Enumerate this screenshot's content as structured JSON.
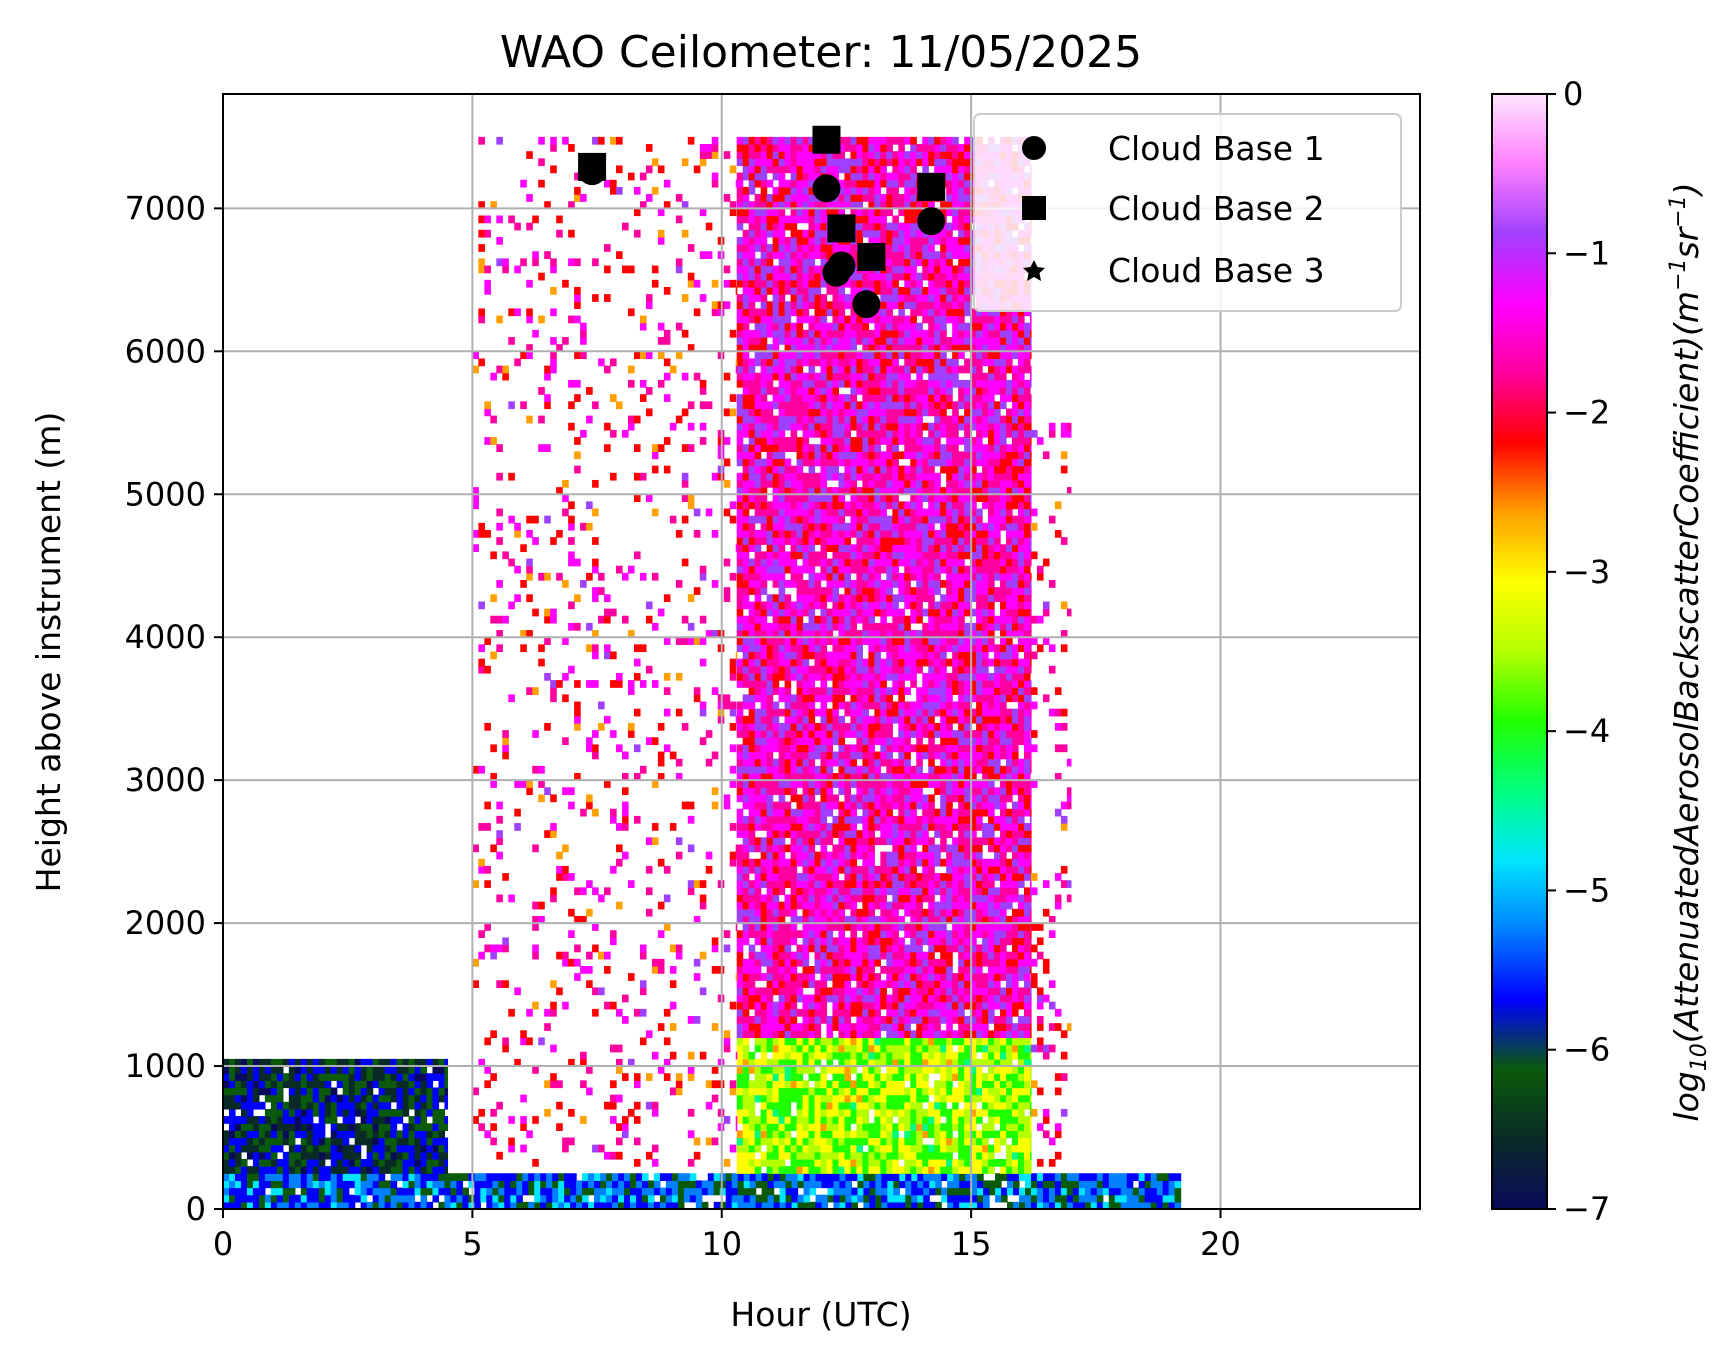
{
  "chart_data": {
    "type": "heatmap",
    "title": "WAO Ceilometer: 11/05/2025",
    "xlabel": "Hour (UTC)",
    "ylabel": "Height above instrument (m)",
    "xlim": [
      0,
      24
    ],
    "ylim": [
      0,
      7800
    ],
    "xticks": [
      "0",
      "5",
      "10",
      "15",
      "20"
    ],
    "yticks": [
      "0",
      "1000",
      "2000",
      "3000",
      "4000",
      "5000",
      "6000",
      "7000"
    ],
    "grid": true,
    "legend_position": "top-right",
    "colorbar": {
      "label": "log10(AttenuatedAerosolBackscatterCoefficient)(m^-1 sr^-1)",
      "label_main": "log",
      "label_sub": "10",
      "label_body": "(AttenuatedAerosolBackscatterCoefficient)(m",
      "label_exp1": "−1",
      "label_mid": "sr",
      "label_exp2": "−1",
      "label_end": ")",
      "range": [
        -7,
        0
      ],
      "ticks": [
        "0",
        "−1",
        "−2",
        "−3",
        "−4",
        "−5",
        "−6",
        "−7"
      ],
      "colormap": [
        "#0a0a5a",
        "#0a2a28",
        "#0a5a0a",
        "#0000ff",
        "#0080ff",
        "#00e5ff",
        "#00ff80",
        "#20ff00",
        "#b4ff00",
        "#ffff00",
        "#ffa000",
        "#ff0000",
        "#ff00a0",
        "#ff00ff",
        "#a040ff",
        "#ff80ff",
        "#ffe6ff"
      ]
    },
    "backscatter_regions": [
      {
        "x": [
          0,
          19.2
        ],
        "y": [
          0,
          250
        ],
        "level": -5.5
      },
      {
        "x": [
          0,
          4.5
        ],
        "y": [
          250,
          1050
        ],
        "level": -6.2
      },
      {
        "x": [
          10.3,
          16.2
        ],
        "y": [
          250,
          1200
        ],
        "level": -3.5
      },
      {
        "x": [
          10.3,
          16.2
        ],
        "y": [
          1200,
          7500
        ],
        "level": -1.5
      },
      {
        "x": [
          5,
          10.3
        ],
        "y": [
          300,
          7500
        ],
        "level": -1.8,
        "sparse": true
      },
      {
        "x": [
          16.2,
          17
        ],
        "y": [
          300,
          5500
        ],
        "level": -1.8,
        "sparse": true
      }
    ],
    "legend": [
      "Cloud Base 1",
      "Cloud Base 2",
      "Cloud Base 3"
    ],
    "series": [
      {
        "name": "Cloud Base 1",
        "marker": "circle",
        "points": [
          [
            7.4,
            7260
          ],
          [
            12.1,
            7140
          ],
          [
            12.3,
            6550
          ],
          [
            12.4,
            6600
          ],
          [
            12.9,
            6330
          ],
          [
            14.2,
            6910
          ]
        ]
      },
      {
        "name": "Cloud Base 2",
        "marker": "square",
        "points": [
          [
            7.4,
            7290
          ],
          [
            12.1,
            7480
          ],
          [
            12.4,
            6860
          ],
          [
            13.0,
            6660
          ],
          [
            14.2,
            7150
          ]
        ]
      },
      {
        "name": "Cloud Base 3",
        "marker": "star",
        "points": []
      }
    ]
  }
}
